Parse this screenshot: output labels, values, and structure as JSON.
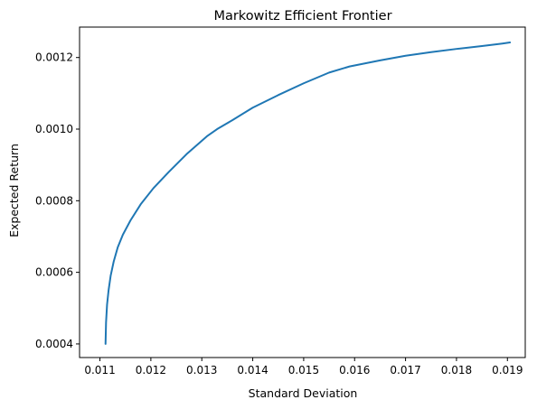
{
  "chart_data": {
    "type": "line",
    "title": "Markowitz Efficient Frontier",
    "xlabel": "Standard Deviation",
    "ylabel": "Expected Return",
    "xlim": [
      0.0106,
      0.01935
    ],
    "ylim": [
      0.000362,
      0.001285
    ],
    "xticks": [
      0.011,
      0.012,
      0.013,
      0.014,
      0.015,
      0.016,
      0.017,
      0.018,
      0.019
    ],
    "xtick_labels": [
      "0.011",
      "0.012",
      "0.013",
      "0.014",
      "0.015",
      "0.016",
      "0.017",
      "0.018",
      "0.019"
    ],
    "yticks": [
      0.0004,
      0.0006,
      0.0008,
      0.001,
      0.0012
    ],
    "ytick_labels": [
      "0.0004",
      "0.0006",
      "0.0008",
      "0.0010",
      "0.0012"
    ],
    "grid": false,
    "legend": "none",
    "series": [
      {
        "color": "#1f77b4",
        "x": [
          0.01111,
          0.01112,
          0.01114,
          0.01117,
          0.01121,
          0.01127,
          0.01135,
          0.01145,
          0.0116,
          0.0118,
          0.01205,
          0.01235,
          0.0127,
          0.0131,
          0.0133,
          0.0136,
          0.014,
          0.0145,
          0.015,
          0.0155,
          0.0159,
          0.0165,
          0.017,
          0.0175,
          0.018,
          0.0185,
          0.0189,
          0.01905
        ],
        "y": [
          0.0004,
          0.00046,
          0.00051,
          0.00055,
          0.00059,
          0.00063,
          0.00067,
          0.000705,
          0.000745,
          0.00079,
          0.000835,
          0.00088,
          0.00093,
          0.00098,
          0.001,
          0.001025,
          0.00106,
          0.001095,
          0.001128,
          0.001158,
          0.001175,
          0.001192,
          0.001205,
          0.001215,
          0.001224,
          0.001232,
          0.001239,
          0.001242
        ]
      }
    ]
  }
}
